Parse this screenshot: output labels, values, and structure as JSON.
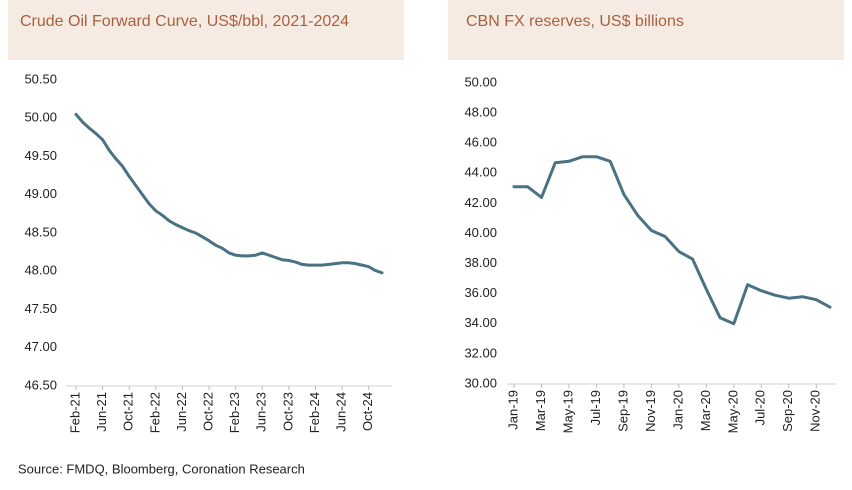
{
  "chart_data": [
    {
      "type": "line",
      "title": "Crude Oil Forward Curve, US$/bbl, 2021-2024",
      "categories": [
        "Feb-21",
        null,
        null,
        null,
        "Jun-21",
        null,
        null,
        null,
        "Oct-21",
        null,
        null,
        null,
        "Feb-22",
        null,
        null,
        null,
        "Jun-22",
        null,
        null,
        null,
        "Oct-22",
        null,
        null,
        null,
        "Feb-23",
        null,
        null,
        null,
        "Jun-23",
        null,
        null,
        null,
        "Oct-23",
        null,
        null,
        null,
        "Feb-24",
        null,
        null,
        null,
        "Jun-24",
        null,
        null,
        null,
        "Oct-24",
        null,
        null
      ],
      "series": [
        {
          "name": null,
          "color": "#4a7285",
          "values": [
            50.05,
            49.95,
            49.87,
            49.8,
            49.72,
            49.58,
            49.47,
            49.37,
            49.24,
            49.12,
            49.0,
            48.88,
            48.79,
            48.73,
            48.66,
            48.61,
            48.57,
            48.53,
            48.5,
            48.45,
            48.4,
            48.34,
            48.3,
            48.24,
            48.21,
            48.2,
            48.2,
            48.21,
            48.24,
            48.21,
            48.18,
            48.15,
            48.14,
            48.12,
            48.09,
            48.08,
            48.08,
            48.08,
            48.09,
            48.1,
            48.11,
            48.11,
            48.1,
            48.08,
            48.06,
            48.01,
            47.98
          ]
        }
      ],
      "ylim": [
        46.5,
        50.5
      ],
      "yticks": [
        {
          "value": 46.5,
          "label": "46.50"
        },
        {
          "value": 47.0,
          "label": "47.00"
        },
        {
          "value": 47.5,
          "label": "47.50"
        },
        {
          "value": 48.0,
          "label": "48.00"
        },
        {
          "value": 48.5,
          "label": "48.50"
        },
        {
          "value": 49.0,
          "label": "49.00"
        },
        {
          "value": 49.5,
          "label": "49.50"
        },
        {
          "value": 50.0,
          "label": "50.00"
        },
        {
          "value": 50.5,
          "label": "50.50"
        }
      ],
      "grid": false
    },
    {
      "type": "line",
      "title": "CBN FX reserves, US$ billions",
      "categories": [
        "Jan-19",
        null,
        "Mar-19",
        null,
        "May-19",
        null,
        "Jul-19",
        null,
        "Sep-19",
        null,
        "Nov-19",
        null,
        "Jan-20",
        null,
        "Mar-20",
        null,
        "May-20",
        null,
        "Jul-20",
        null,
        "Sep-20",
        null,
        "Nov-20",
        null
      ],
      "series": [
        {
          "name": null,
          "color": "#4a7285",
          "values": [
            43.1,
            43.1,
            42.4,
            44.7,
            44.8,
            45.1,
            45.1,
            44.8,
            42.6,
            41.2,
            40.2,
            39.8,
            38.8,
            38.3,
            36.3,
            34.4,
            34.0,
            36.6,
            36.2,
            35.9,
            35.7,
            35.8,
            35.6,
            35.1
          ]
        }
      ],
      "ylim": [
        30,
        50
      ],
      "yticks": [
        {
          "value": 30,
          "label": "30.00"
        },
        {
          "value": 32,
          "label": "32.00"
        },
        {
          "value": 34,
          "label": "34.00"
        },
        {
          "value": 36,
          "label": "36.00"
        },
        {
          "value": 38,
          "label": "38.00"
        },
        {
          "value": 40,
          "label": "40.00"
        },
        {
          "value": 42,
          "label": "42.00"
        },
        {
          "value": 44,
          "label": "44.00"
        },
        {
          "value": 46,
          "label": "46.00"
        },
        {
          "value": 48,
          "label": "48.00"
        },
        {
          "value": 50,
          "label": "50.00"
        }
      ],
      "grid": false
    }
  ],
  "source": "Source: FMDQ, Bloomberg, Coronation Research"
}
